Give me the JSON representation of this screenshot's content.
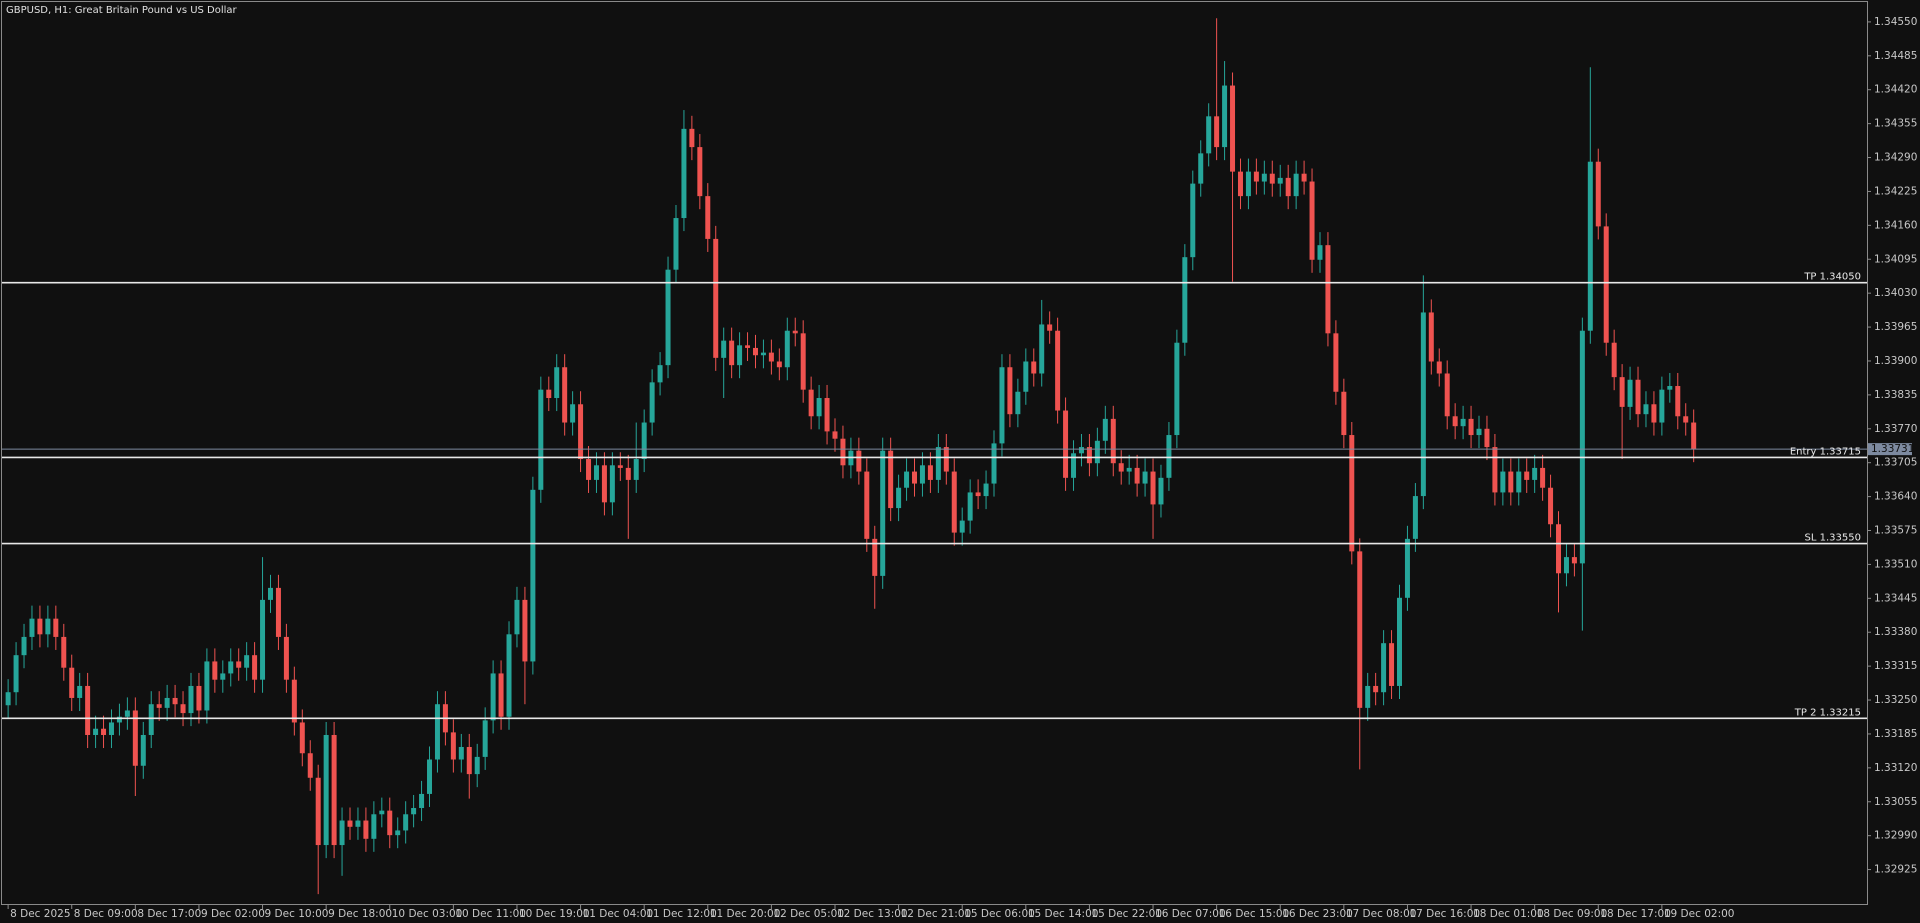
{
  "chart_data": {
    "type": "candlestick",
    "title": "GBPUSD, H1:  Great Britain Pound vs US Dollar",
    "up_color": "#26a69a",
    "down_color": "#ef5350",
    "grid": false,
    "bid": 1.33731,
    "bid_color": "#7d8aa0",
    "xlim": [
      -0.77,
      233.8
    ],
    "ylim": [
      1.32859,
      1.34592
    ],
    "yticks": [
      {
        "value": 1.3455,
        "label": "1.34550"
      },
      1.34485,
      {
        "value": 1.3442,
        "label": "1.34420"
      },
      1.34355,
      {
        "value": 1.3429,
        "label": "1.34290"
      },
      1.34225,
      {
        "value": 1.3416,
        "label": "1.34160"
      },
      1.34095,
      {
        "value": 1.3403,
        "label": "1.34030"
      },
      1.33965,
      {
        "value": 1.339,
        "label": "1.33900"
      },
      1.33835,
      {
        "value": 1.3377,
        "label": "1.33770"
      },
      1.33705,
      {
        "value": 1.3364,
        "label": "1.33640"
      },
      1.33575,
      {
        "value": 1.3351,
        "label": "1.33510"
      },
      1.33445,
      {
        "value": 1.3338,
        "label": "1.33380"
      },
      1.33315,
      {
        "value": 1.3325,
        "label": "1.33250"
      },
      1.33185,
      {
        "value": 1.3312,
        "label": "1.33120"
      },
      1.33055,
      {
        "value": 1.3299,
        "label": "1.32990"
      },
      1.32925
    ],
    "xticks": [
      {
        "value": 0,
        "label": "8 Dec 2025"
      },
      {
        "value": 8,
        "label": "8 Dec 09:00"
      },
      {
        "value": 16,
        "label": "8 Dec 17:00"
      },
      {
        "value": 24,
        "label": "9 Dec 02:00"
      },
      {
        "value": 32,
        "label": "9 Dec 10:00"
      },
      {
        "value": 40,
        "label": "9 Dec 18:00"
      },
      {
        "value": 48,
        "label": "10 Dec 03:00"
      },
      {
        "value": 56,
        "label": "10 Dec 11:00"
      },
      {
        "value": 64,
        "label": "10 Dec 19:00"
      },
      {
        "value": 72,
        "label": "11 Dec 04:00"
      },
      {
        "value": 80,
        "label": "11 Dec 12:00"
      },
      {
        "value": 88,
        "label": "11 Dec 20:00"
      },
      {
        "value": 96,
        "label": "12 Dec 05:00"
      },
      {
        "value": 104,
        "label": "12 Dec 13:00"
      },
      {
        "value": 112,
        "label": "12 Dec 21:00"
      },
      {
        "value": 120,
        "label": "15 Dec 06:00"
      },
      {
        "value": 128,
        "label": "15 Dec 14:00"
      },
      {
        "value": 136,
        "label": "15 Dec 22:00"
      },
      {
        "value": 144,
        "label": "16 Dec 07:00"
      },
      {
        "value": 152,
        "label": "16 Dec 15:00"
      },
      {
        "value": 160,
        "label": "16 Dec 23:00"
      },
      {
        "value": 168,
        "label": "17 Dec 08:00"
      },
      {
        "value": 176,
        "label": "17 Dec 16:00"
      },
      {
        "value": 184,
        "label": "18 Dec 01:00"
      },
      {
        "value": 192,
        "label": "18 Dec 09:00"
      },
      {
        "value": 200,
        "label": "18 Dec 17:00"
      },
      {
        "value": 208,
        "label": "19 Dec 02:00"
      }
    ],
    "levels": [
      {
        "name": "TP",
        "value": 1.3405,
        "value_label": "1.34050"
      },
      {
        "name": "Entry",
        "value": 1.33715
      },
      {
        "name": "SL",
        "value": 1.3355,
        "value_label": "1.33550"
      },
      {
        "name": "TP 2",
        "value": 1.33215
      }
    ],
    "open": [
      1.3324,
      1.33265,
      1.33336,
      1.33371,
      1.33406,
      1.33376,
      1.33406,
      1.33371,
      1.33312,
      1.33254,
      1.33277,
      1.33183,
      1.33195,
      1.33183,
      1.33207,
      1.33218,
      1.3323,
      1.33124,
      1.33183,
      1.33242,
      1.33235,
      1.33254,
      1.33242,
      1.33225,
      1.33277,
      1.3323,
      1.33324,
      1.33289,
      1.33301,
      1.33324,
      1.33312,
      1.33336,
      1.33289,
      1.33442,
      1.33465,
      1.33371,
      1.33289,
      1.33207,
      1.33148,
      1.33101,
      1.32972,
      1.33183,
      1.32972,
      1.33019,
      1.33007,
      1.33019,
      1.32984,
      1.33031,
      1.33038,
      1.32991,
      1.33,
      1.33031,
      1.33043,
      1.3307,
      1.33136,
      1.33242,
      1.33188,
      1.33136,
      1.3316,
      1.33108,
      1.33141,
      1.33211,
      1.33301,
      1.33218,
      1.33376,
      1.33442,
      1.33324,
      1.33653,
      1.33845,
      1.33829,
      1.33888,
      1.33782,
      1.33817,
      1.33712,
      1.33672,
      1.337,
      1.33629,
      1.337,
      1.33695,
      1.33672,
      1.33712,
      1.33782,
      1.33859,
      1.33892,
      1.34075,
      1.34174,
      1.34345,
      1.3431,
      1.34216,
      1.34134,
      1.33906,
      1.33939,
      1.33892,
      1.3393,
      1.33925,
      1.33911,
      1.33916,
      1.33899,
      1.33888,
      1.33958,
      1.33953,
      1.33845,
      1.33794,
      1.33829,
      1.33765,
      1.33751,
      1.337,
      1.33728,
      1.33688,
      1.33559,
      1.33488,
      1.33728,
      1.33618,
      1.33657,
      1.33688,
      1.33665,
      1.337,
      1.33672,
      1.33735,
      1.33688,
      1.33571,
      1.33594,
      1.33648,
      1.33641,
      1.33665,
      1.33742,
      1.33888,
      1.33798,
      1.33841,
      1.33899,
      1.33876,
      1.3397,
      1.33958,
      1.33805,
      1.33676,
      1.33723,
      1.33735,
      1.33704,
      1.33747,
      1.33789,
      1.33704,
      1.33688,
      1.33695,
      1.33665,
      1.33688,
      1.33625,
      1.33676,
      1.33758,
      1.33935,
      1.34099,
      1.3424,
      1.34298,
      1.34369,
      1.3431,
      1.34428,
      1.34263,
      1.34216,
      1.34263,
      1.34244,
      1.34259,
      1.3424,
      1.34251,
      1.34216,
      1.34259,
      1.34244,
      1.34094,
      1.34122,
      1.33953,
      1.33841,
      1.33758,
      1.33535,
      1.33235,
      1.33277,
      1.33265,
      1.33359,
      1.33277,
      1.33446,
      1.33559,
      1.33641,
      1.33993,
      1.33899,
      1.33876,
      1.33794,
      1.33775,
      1.33789,
      1.33758,
      1.3377,
      1.33735,
      1.33648,
      1.33688,
      1.33648,
      1.33688,
      1.33672,
      1.33695,
      1.33657,
      1.33587,
      1.33493,
      1.33524,
      1.33512,
      1.33958,
      1.34282,
      1.34158,
      1.33935,
      1.33869,
      1.33812,
      1.33864,
      1.33798,
      1.33817,
      1.33782,
      1.33845,
      1.33852,
      1.33794,
      1.33782
    ],
    "high": [
      1.3329,
      1.33361,
      1.33396,
      1.33431,
      1.33431,
      1.33431,
      1.33431,
      1.33396,
      1.33337,
      1.33302,
      1.33302,
      1.3322,
      1.3322,
      1.33232,
      1.33243,
      1.33255,
      1.33255,
      1.33208,
      1.33267,
      1.33267,
      1.33279,
      1.33279,
      1.33267,
      1.33302,
      1.33302,
      1.33349,
      1.33349,
      1.33326,
      1.33349,
      1.33349,
      1.33361,
      1.33361,
      1.33524,
      1.3349,
      1.3349,
      1.33396,
      1.33314,
      1.33232,
      1.33173,
      1.33126,
      1.33208,
      1.33208,
      1.33044,
      1.33044,
      1.33044,
      1.33044,
      1.33056,
      1.33063,
      1.33063,
      1.33025,
      1.33056,
      1.33068,
      1.33095,
      1.33161,
      1.33267,
      1.33267,
      1.33213,
      1.33185,
      1.33185,
      1.33166,
      1.33236,
      1.33326,
      1.33326,
      1.33401,
      1.33467,
      1.33467,
      1.33678,
      1.3387,
      1.3387,
      1.33913,
      1.33913,
      1.33842,
      1.33842,
      1.33737,
      1.33725,
      1.33725,
      1.33725,
      1.33725,
      1.3372,
      1.33782,
      1.33807,
      1.33884,
      1.33917,
      1.341,
      1.34199,
      1.34381,
      1.3437,
      1.34335,
      1.34241,
      1.34159,
      1.33964,
      1.33964,
      1.33955,
      1.33955,
      1.3395,
      1.33941,
      1.33941,
      1.33924,
      1.33983,
      1.33983,
      1.33978,
      1.3387,
      1.33854,
      1.33854,
      1.3379,
      1.33776,
      1.33753,
      1.33753,
      1.33713,
      1.33584,
      1.33753,
      1.33753,
      1.33682,
      1.33713,
      1.33713,
      1.33725,
      1.33725,
      1.3376,
      1.3376,
      1.33713,
      1.33619,
      1.33673,
      1.33673,
      1.3369,
      1.33767,
      1.33913,
      1.33913,
      1.33866,
      1.33924,
      1.33924,
      1.34017,
      1.33995,
      1.33983,
      1.3383,
      1.33748,
      1.3376,
      1.3376,
      1.33772,
      1.33814,
      1.33814,
      1.33729,
      1.3372,
      1.3372,
      1.33713,
      1.33713,
      1.33701,
      1.33783,
      1.3396,
      1.34124,
      1.34265,
      1.34323,
      1.34394,
      1.34557,
      1.34475,
      1.34453,
      1.34288,
      1.34288,
      1.34288,
      1.34284,
      1.34284,
      1.34276,
      1.34276,
      1.34284,
      1.34284,
      1.34269,
      1.34147,
      1.34147,
      1.33978,
      1.33866,
      1.33783,
      1.3356,
      1.33302,
      1.33302,
      1.33384,
      1.33384,
      1.33471,
      1.33584,
      1.33666,
      1.34064,
      1.34018,
      1.33924,
      1.33901,
      1.33819,
      1.33814,
      1.33814,
      1.33795,
      1.33795,
      1.3376,
      1.33713,
      1.33713,
      1.33713,
      1.33713,
      1.3372,
      1.3372,
      1.33682,
      1.33612,
      1.33549,
      1.33549,
      1.33983,
      1.34463,
      1.34307,
      1.34183,
      1.3396,
      1.33894,
      1.33889,
      1.33889,
      1.33842,
      1.33842,
      1.3387,
      1.33877,
      1.33877,
      1.33819,
      1.33807
    ],
    "low": [
      1.33215,
      1.3324,
      1.33311,
      1.33346,
      1.33351,
      1.33351,
      1.33346,
      1.33287,
      1.33229,
      1.33229,
      1.33158,
      1.33158,
      1.33158,
      1.33158,
      1.33182,
      1.33193,
      1.33066,
      1.33099,
      1.33158,
      1.3321,
      1.3321,
      1.33217,
      1.332,
      1.332,
      1.33205,
      1.33205,
      1.33264,
      1.33264,
      1.33276,
      1.33287,
      1.33287,
      1.33264,
      1.33264,
      1.33417,
      1.33346,
      1.33264,
      1.33182,
      1.33123,
      1.33076,
      1.32878,
      1.32947,
      1.32947,
      1.32913,
      1.32982,
      1.32982,
      1.32959,
      1.32959,
      1.33006,
      1.32966,
      1.32966,
      1.32975,
      1.33006,
      1.33018,
      1.33045,
      1.33111,
      1.33163,
      1.33111,
      1.33111,
      1.33061,
      1.33083,
      1.33116,
      1.33186,
      1.33193,
      1.33193,
      1.33351,
      1.33242,
      1.33299,
      1.33628,
      1.33804,
      1.33804,
      1.33757,
      1.33757,
      1.33687,
      1.33647,
      1.33647,
      1.33604,
      1.33604,
      1.3367,
      1.33559,
      1.33647,
      1.33687,
      1.33757,
      1.33834,
      1.33867,
      1.3405,
      1.34149,
      1.34285,
      1.34191,
      1.34109,
      1.33881,
      1.33829,
      1.33867,
      1.33867,
      1.339,
      1.33886,
      1.33886,
      1.33874,
      1.33863,
      1.33863,
      1.33928,
      1.3382,
      1.33769,
      1.33769,
      1.3374,
      1.33726,
      1.33675,
      1.33675,
      1.33663,
      1.33534,
      1.33425,
      1.33463,
      1.33593,
      1.33593,
      1.33632,
      1.3364,
      1.3364,
      1.33647,
      1.33647,
      1.33663,
      1.33546,
      1.33546,
      1.33569,
      1.33616,
      1.33616,
      1.3364,
      1.33717,
      1.33773,
      1.33773,
      1.33816,
      1.33851,
      1.33851,
      1.33933,
      1.3378,
      1.33651,
      1.33651,
      1.33698,
      1.33679,
      1.33679,
      1.33722,
      1.33679,
      1.33663,
      1.33663,
      1.3364,
      1.3364,
      1.33559,
      1.336,
      1.33651,
      1.33733,
      1.3391,
      1.34074,
      1.34215,
      1.34273,
      1.34285,
      1.34285,
      1.34052,
      1.34191,
      1.34191,
      1.34219,
      1.34219,
      1.34215,
      1.34215,
      1.34191,
      1.34191,
      1.34219,
      1.34069,
      1.34069,
      1.33928,
      1.33816,
      1.33733,
      1.3351,
      1.33117,
      1.3321,
      1.3324,
      1.3324,
      1.33252,
      1.33252,
      1.33421,
      1.33534,
      1.33616,
      1.33874,
      1.33851,
      1.33769,
      1.3375,
      1.3375,
      1.33733,
      1.33733,
      1.3371,
      1.33623,
      1.33623,
      1.33623,
      1.33623,
      1.33647,
      1.33647,
      1.33632,
      1.33562,
      1.33418,
      1.33468,
      1.33487,
      1.33383,
      1.33933,
      1.34133,
      1.3391,
      1.33844,
      1.33712,
      1.33787,
      1.33773,
      1.33773,
      1.33757,
      1.33757,
      1.3382,
      1.33769,
      1.33757,
      1.33706
    ],
    "close": [
      1.33265,
      1.33336,
      1.33371,
      1.33406,
      1.33376,
      1.33406,
      1.33371,
      1.33312,
      1.33254,
      1.33277,
      1.33183,
      1.33195,
      1.33183,
      1.33207,
      1.33218,
      1.3323,
      1.33124,
      1.33183,
      1.33242,
      1.33235,
      1.33254,
      1.33242,
      1.33225,
      1.33277,
      1.3323,
      1.33324,
      1.33289,
      1.33301,
      1.33324,
      1.33312,
      1.33336,
      1.33289,
      1.33442,
      1.33465,
      1.33371,
      1.33289,
      1.33207,
      1.33148,
      1.33101,
      1.32972,
      1.33183,
      1.32972,
      1.33019,
      1.33007,
      1.33019,
      1.32984,
      1.33031,
      1.33038,
      1.32991,
      1.33,
      1.33031,
      1.33043,
      1.3307,
      1.33136,
      1.33242,
      1.33188,
      1.33136,
      1.3316,
      1.33108,
      1.33141,
      1.33211,
      1.33301,
      1.33218,
      1.33376,
      1.33442,
      1.33324,
      1.33653,
      1.33845,
      1.33829,
      1.33888,
      1.33782,
      1.33817,
      1.33712,
      1.33672,
      1.337,
      1.33629,
      1.337,
      1.33695,
      1.33672,
      1.33712,
      1.33782,
      1.33859,
      1.33892,
      1.34075,
      1.34174,
      1.34345,
      1.3431,
      1.34216,
      1.34134,
      1.33906,
      1.33939,
      1.33892,
      1.3393,
      1.33925,
      1.33911,
      1.33916,
      1.33899,
      1.33888,
      1.33958,
      1.33953,
      1.33845,
      1.33794,
      1.33829,
      1.33765,
      1.33751,
      1.337,
      1.33728,
      1.33688,
      1.33559,
      1.33488,
      1.33728,
      1.33618,
      1.33657,
      1.33688,
      1.33665,
      1.337,
      1.33672,
      1.33735,
      1.33688,
      1.33571,
      1.33594,
      1.33648,
      1.33641,
      1.33665,
      1.33742,
      1.33888,
      1.33798,
      1.33841,
      1.33899,
      1.33876,
      1.3397,
      1.33958,
      1.33805,
      1.33676,
      1.33723,
      1.33735,
      1.33704,
      1.33747,
      1.33789,
      1.33704,
      1.33688,
      1.33695,
      1.33665,
      1.33688,
      1.33625,
      1.33676,
      1.33758,
      1.33935,
      1.34099,
      1.3424,
      1.34298,
      1.34369,
      1.3431,
      1.34428,
      1.34263,
      1.34216,
      1.34263,
      1.34244,
      1.34259,
      1.3424,
      1.34251,
      1.34216,
      1.34259,
      1.34244,
      1.34094,
      1.34122,
      1.33953,
      1.33841,
      1.33758,
      1.33535,
      1.33235,
      1.33277,
      1.33265,
      1.33359,
      1.33277,
      1.33446,
      1.33559,
      1.33641,
      1.33993,
      1.33899,
      1.33876,
      1.33794,
      1.33775,
      1.33789,
      1.33758,
      1.3377,
      1.33735,
      1.33648,
      1.33688,
      1.33648,
      1.33688,
      1.33672,
      1.33695,
      1.33657,
      1.33587,
      1.33493,
      1.33524,
      1.33512,
      1.33958,
      1.34282,
      1.34158,
      1.33935,
      1.33869,
      1.33812,
      1.33864,
      1.33798,
      1.33817,
      1.33782,
      1.33845,
      1.33852,
      1.33794,
      1.33782,
      1.33731
    ]
  }
}
